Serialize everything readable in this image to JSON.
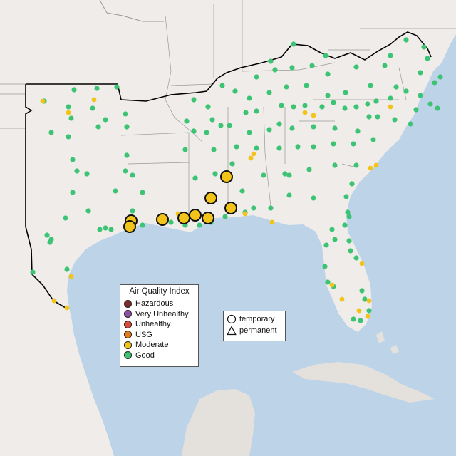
{
  "map": {
    "colors": {
      "water": "#bcd3e8",
      "land": "#efecea",
      "foreign_land": "#e4e1dd",
      "state_border": "#9a9a9a",
      "region_border": "#000000"
    }
  },
  "legend": {
    "title": "Air Quality Index",
    "categories": [
      {
        "label": "Hazardous",
        "color": "#7e2b2b"
      },
      {
        "label": "Very Unhealthy",
        "color": "#8f4fa6"
      },
      {
        "label": "Unhealthy",
        "color": "#e0483a"
      },
      {
        "label": "USG",
        "color": "#e07a1c"
      },
      {
        "label": "Moderate",
        "color": "#f2c318"
      },
      {
        "label": "Good",
        "color": "#3cc474"
      }
    ]
  },
  "monitor_type_legend": {
    "items": [
      {
        "label": "temporary",
        "shape": "circle-icon"
      },
      {
        "label": "permanent",
        "shape": "triangle-icon"
      }
    ]
  }
}
